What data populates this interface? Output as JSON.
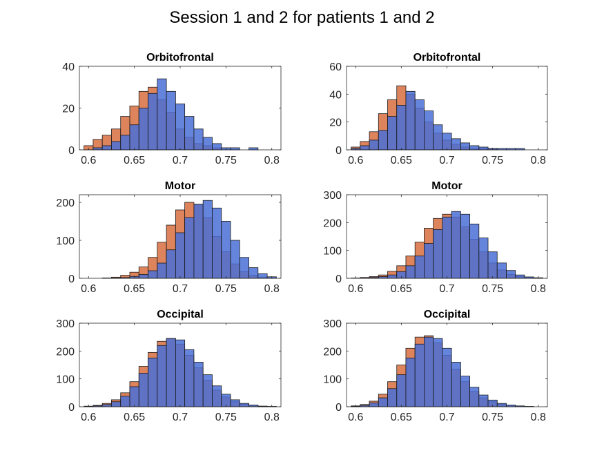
{
  "figure": {
    "title": "Session 1 and 2 for patients 1 and 2",
    "colors": {
      "series1": "#d9774a",
      "series2": "#4a6fd6",
      "edge": "#1a1a1a"
    }
  },
  "chart_data": [
    {
      "type": "bar",
      "title": "Orbitofrontal",
      "xlabel": "",
      "ylabel": "",
      "xlim": [
        0.59,
        0.81
      ],
      "ylim": [
        0,
        40
      ],
      "xticks": [
        0.6,
        0.65,
        0.7,
        0.75,
        0.8
      ],
      "yticks": [
        0,
        20,
        40
      ],
      "grid": false,
      "x": [
        0.6,
        0.61,
        0.62,
        0.63,
        0.64,
        0.65,
        0.66,
        0.67,
        0.68,
        0.69,
        0.7,
        0.71,
        0.72,
        0.73,
        0.74,
        0.75,
        0.76,
        0.77,
        0.78,
        0.79,
        0.8
      ],
      "series": [
        {
          "values": [
            2,
            5,
            7,
            10,
            16,
            21,
            28,
            30,
            24,
            18,
            10,
            6,
            3,
            2,
            1,
            0,
            0,
            0,
            0,
            0,
            0
          ]
        },
        {
          "values": [
            0,
            1,
            2,
            4,
            7,
            12,
            20,
            27,
            34,
            28,
            22,
            16,
            10,
            6,
            3,
            1,
            1,
            0,
            1,
            0,
            0
          ]
        }
      ]
    },
    {
      "type": "bar",
      "title": "Orbitofrontal",
      "xlabel": "",
      "ylabel": "",
      "xlim": [
        0.59,
        0.81
      ],
      "ylim": [
        0,
        60
      ],
      "xticks": [
        0.6,
        0.65,
        0.7,
        0.75,
        0.8
      ],
      "yticks": [
        0,
        20,
        40,
        60
      ],
      "grid": false,
      "x": [
        0.6,
        0.61,
        0.62,
        0.63,
        0.64,
        0.65,
        0.66,
        0.67,
        0.68,
        0.69,
        0.7,
        0.71,
        0.72,
        0.73,
        0.74,
        0.75,
        0.76,
        0.77,
        0.78,
        0.79,
        0.8
      ],
      "series": [
        {
          "values": [
            2,
            6,
            13,
            26,
            36,
            46,
            40,
            30,
            20,
            12,
            7,
            4,
            2,
            1,
            1,
            1,
            0,
            0,
            0,
            0,
            0
          ]
        },
        {
          "values": [
            1,
            3,
            7,
            14,
            24,
            32,
            42,
            36,
            28,
            18,
            12,
            8,
            5,
            3,
            2,
            1,
            1,
            1,
            1,
            0,
            0
          ]
        }
      ]
    },
    {
      "type": "bar",
      "title": "Motor",
      "xlabel": "",
      "ylabel": "",
      "xlim": [
        0.59,
        0.81
      ],
      "ylim": [
        0,
        220
      ],
      "xticks": [
        0.6,
        0.65,
        0.7,
        0.75,
        0.8
      ],
      "yticks": [
        0,
        100,
        200
      ],
      "grid": false,
      "x": [
        0.6,
        0.61,
        0.62,
        0.63,
        0.64,
        0.65,
        0.66,
        0.67,
        0.68,
        0.69,
        0.7,
        0.71,
        0.72,
        0.73,
        0.74,
        0.75,
        0.76,
        0.77,
        0.78,
        0.79,
        0.8
      ],
      "series": [
        {
          "values": [
            0,
            0,
            1,
            3,
            8,
            16,
            30,
            55,
            95,
            140,
            180,
            200,
            195,
            160,
            110,
            70,
            38,
            18,
            8,
            3,
            1
          ]
        },
        {
          "values": [
            0,
            0,
            0,
            1,
            2,
            5,
            10,
            20,
            40,
            75,
            120,
            160,
            195,
            205,
            185,
            150,
            100,
            55,
            28,
            12,
            4
          ]
        }
      ]
    },
    {
      "type": "bar",
      "title": "Motor",
      "xlabel": "",
      "ylabel": "",
      "xlim": [
        0.59,
        0.81
      ],
      "ylim": [
        0,
        300
      ],
      "xticks": [
        0.6,
        0.65,
        0.7,
        0.75,
        0.8
      ],
      "yticks": [
        0,
        100,
        200,
        300
      ],
      "grid": false,
      "x": [
        0.6,
        0.61,
        0.62,
        0.63,
        0.64,
        0.65,
        0.66,
        0.67,
        0.68,
        0.69,
        0.7,
        0.71,
        0.72,
        0.73,
        0.74,
        0.75,
        0.76,
        0.77,
        0.78,
        0.79,
        0.8
      ],
      "series": [
        {
          "values": [
            1,
            3,
            6,
            12,
            25,
            45,
            80,
            130,
            180,
            215,
            230,
            220,
            185,
            140,
            95,
            55,
            30,
            14,
            6,
            2,
            1
          ]
        },
        {
          "values": [
            0,
            1,
            3,
            6,
            12,
            24,
            45,
            80,
            125,
            175,
            220,
            240,
            230,
            195,
            145,
            95,
            55,
            28,
            12,
            5,
            2
          ]
        }
      ]
    },
    {
      "type": "bar",
      "title": "Occipital",
      "xlabel": "",
      "ylabel": "",
      "xlim": [
        0.59,
        0.81
      ],
      "ylim": [
        0,
        300
      ],
      "xticks": [
        0.6,
        0.65,
        0.7,
        0.75,
        0.8
      ],
      "yticks": [
        0,
        100,
        200,
        300
      ],
      "grid": false,
      "x": [
        0.6,
        0.61,
        0.62,
        0.63,
        0.64,
        0.65,
        0.66,
        0.67,
        0.68,
        0.69,
        0.7,
        0.71,
        0.72,
        0.73,
        0.74,
        0.75,
        0.76,
        0.77,
        0.78,
        0.79,
        0.8
      ],
      "series": [
        {
          "values": [
            2,
            5,
            12,
            25,
            50,
            90,
            145,
            195,
            235,
            245,
            225,
            185,
            140,
            95,
            60,
            35,
            18,
            9,
            4,
            2,
            1
          ]
        },
        {
          "values": [
            1,
            3,
            8,
            18,
            38,
            72,
            120,
            175,
            220,
            245,
            240,
            205,
            160,
            115,
            75,
            45,
            25,
            12,
            6,
            2,
            1
          ]
        }
      ]
    },
    {
      "type": "bar",
      "title": "Occipital",
      "xlabel": "",
      "ylabel": "",
      "xlim": [
        0.59,
        0.81
      ],
      "ylim": [
        0,
        300
      ],
      "xticks": [
        0.6,
        0.65,
        0.7,
        0.75,
        0.8
      ],
      "yticks": [
        0,
        100,
        200,
        300
      ],
      "grid": false,
      "x": [
        0.6,
        0.61,
        0.62,
        0.63,
        0.64,
        0.65,
        0.66,
        0.67,
        0.68,
        0.69,
        0.7,
        0.71,
        0.72,
        0.73,
        0.74,
        0.75,
        0.76,
        0.77,
        0.78,
        0.79,
        0.8
      ],
      "series": [
        {
          "values": [
            3,
            8,
            20,
            45,
            90,
            150,
            210,
            250,
            255,
            230,
            185,
            135,
            90,
            55,
            32,
            18,
            9,
            4,
            2,
            1,
            0
          ]
        },
        {
          "values": [
            2,
            5,
            14,
            32,
            65,
            115,
            175,
            225,
            250,
            245,
            210,
            160,
            110,
            70,
            42,
            24,
            12,
            6,
            3,
            1,
            0
          ]
        }
      ]
    }
  ]
}
